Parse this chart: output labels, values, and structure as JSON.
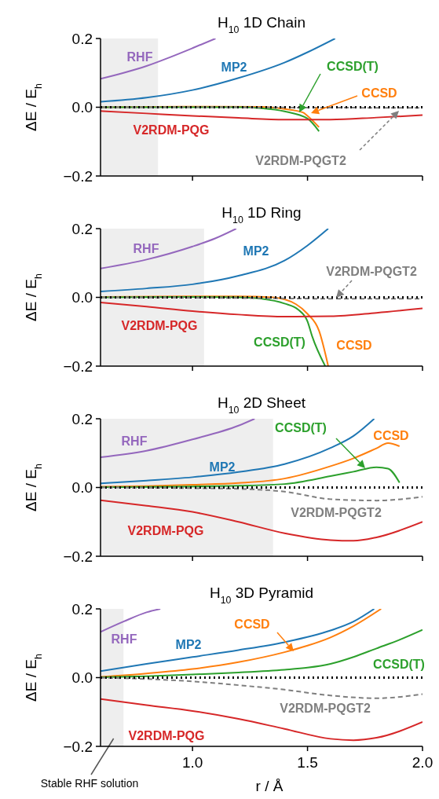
{
  "chart_data": [
    {
      "type": "line",
      "title": "H$_{10}$ 1D Chain",
      "ylabel": "ΔE / E$_{h}$",
      "xlim": [
        0.6,
        2.0
      ],
      "ylim": [
        -0.2,
        0.2
      ],
      "xticks": [
        {
          "value": 1,
          "label": null
        },
        {
          "value": 1.5,
          "label": null
        },
        {
          "value": 2,
          "label": null
        }
      ],
      "yticks": [
        {
          "value": -0.2,
          "label": "−0.2"
        },
        {
          "value": 0,
          "label": "0.0"
        },
        {
          "value": 0.2,
          "label": "0.2"
        }
      ],
      "tick_labels": "y",
      "grid": false,
      "legend": false,
      "marker": "none",
      "ref_lines": [
        {
          "axis": "y",
          "value": 0,
          "color": "#000000",
          "line_style": "dotted"
        }
      ],
      "bands": [
        {
          "axis": "x",
          "from": 0.6,
          "to": 0.85,
          "color": "#eeeeee"
        }
      ],
      "series": [
        {
          "name": "RHF",
          "color": "#9467bd",
          "x": [
            0.6,
            0.7,
            0.8,
            0.9,
            1.0,
            1.1
          ],
          "values": [
            0.083,
            0.1,
            0.12,
            0.145,
            0.172,
            0.2
          ]
        },
        {
          "name": "MP2",
          "color": "#1f77b4",
          "x": [
            0.6,
            0.8,
            1.0,
            1.2,
            1.4,
            1.5,
            1.62
          ],
          "values": [
            0.016,
            0.028,
            0.05,
            0.085,
            0.13,
            0.16,
            0.2
          ]
        },
        {
          "name": "CCSD",
          "color": "#ff7f0e",
          "x": [
            0.6,
            1.0,
            1.3,
            1.4,
            1.48,
            1.5,
            1.55
          ],
          "values": [
            0,
            0.002,
            0.001,
            -0.005,
            -0.015,
            -0.025,
            -0.058
          ]
        },
        {
          "name": "CCSD(T)",
          "color": "#2ca02c",
          "x": [
            0.6,
            1.2,
            1.3,
            1.4,
            1.5,
            1.55
          ],
          "values": [
            0,
            0,
            -0.003,
            -0.012,
            -0.033,
            -0.07
          ]
        },
        {
          "name": "V2RDM-PQG",
          "color": "#d62728",
          "x": [
            0.6,
            0.8,
            1.0,
            1.2,
            1.4,
            1.6,
            1.8,
            2.0
          ],
          "values": [
            -0.011,
            -0.018,
            -0.025,
            -0.031,
            -0.036,
            -0.036,
            -0.03,
            -0.023
          ]
        },
        {
          "name": "V2RDM-PQGT2",
          "color": "#7f7f7f",
          "line_style": "dashed",
          "x": [
            0.6,
            1.0,
            1.5,
            2.0
          ],
          "values": [
            0,
            0,
            -0.001,
            -0.002
          ]
        }
      ]
    },
    {
      "type": "line",
      "title": "H$_{10}$ 1D Ring",
      "ylabel": "ΔE / E$_{h}$",
      "xlim": [
        0.6,
        2.0
      ],
      "ylim": [
        -0.2,
        0.2
      ],
      "xticks": [
        {
          "value": 1,
          "label": null
        },
        {
          "value": 1.5,
          "label": null
        },
        {
          "value": 2,
          "label": null
        }
      ],
      "yticks": [
        {
          "value": -0.2,
          "label": "−0.2"
        },
        {
          "value": 0,
          "label": "0.0"
        },
        {
          "value": 0.2,
          "label": "0.2"
        }
      ],
      "tick_labels": "y",
      "grid": false,
      "legend": false,
      "marker": "none",
      "ref_lines": [
        {
          "axis": "y",
          "value": 0,
          "color": "#000000",
          "line_style": "dotted"
        }
      ],
      "bands": [
        {
          "axis": "x",
          "from": 0.6,
          "to": 1.05,
          "color": "#eeeeee"
        }
      ],
      "series": [
        {
          "name": "RHF",
          "color": "#9467bd",
          "x": [
            0.6,
            0.8,
            1.0,
            1.1,
            1.19
          ],
          "values": [
            0.084,
            0.11,
            0.148,
            0.172,
            0.2
          ]
        },
        {
          "name": "MP2",
          "color": "#1f77b4",
          "x": [
            0.6,
            0.8,
            1.0,
            1.2,
            1.4,
            1.5,
            1.59
          ],
          "values": [
            0.017,
            0.026,
            0.038,
            0.063,
            0.107,
            0.151,
            0.2
          ]
        },
        {
          "name": "CCSD",
          "color": "#ff7f0e",
          "x": [
            0.6,
            1.0,
            1.2,
            1.35,
            1.45,
            1.5,
            1.55,
            1.59
          ],
          "values": [
            0.001,
            0.003,
            0.003,
            0,
            -0.02,
            -0.048,
            -0.097,
            -0.2
          ]
        },
        {
          "name": "CCSD(T)",
          "color": "#2ca02c",
          "x": [
            0.6,
            1.0,
            1.2,
            1.3,
            1.4,
            1.46,
            1.5,
            1.52,
            1.577
          ],
          "values": [
            0,
            0.001,
            0,
            -0.004,
            -0.018,
            -0.036,
            -0.07,
            -0.113,
            -0.2
          ]
        },
        {
          "name": "V2RDM-PQG",
          "color": "#d62728",
          "x": [
            0.6,
            0.8,
            1.0,
            1.2,
            1.4,
            1.6,
            1.8,
            2.0
          ],
          "values": [
            -0.015,
            -0.027,
            -0.04,
            -0.05,
            -0.056,
            -0.055,
            -0.045,
            -0.032
          ]
        },
        {
          "name": "V2RDM-PQGT2",
          "color": "#7f7f7f",
          "line_style": "dashed",
          "x": [
            0.6,
            1.0,
            1.4,
            1.6,
            2.0
          ],
          "values": [
            0,
            -0.001,
            -0.003,
            -0.004,
            -0.004
          ]
        }
      ]
    },
    {
      "type": "line",
      "title": "H$_{10}$ 2D Sheet",
      "ylabel": "ΔE / E$_{h}$",
      "xlim": [
        0.6,
        2.0
      ],
      "ylim": [
        -0.2,
        0.2
      ],
      "xticks": [
        {
          "value": 1,
          "label": null
        },
        {
          "value": 1.5,
          "label": null
        },
        {
          "value": 2,
          "label": null
        }
      ],
      "yticks": [
        {
          "value": -0.2,
          "label": "−0.2"
        },
        {
          "value": 0,
          "label": "0.0"
        },
        {
          "value": 0.2,
          "label": "0.2"
        }
      ],
      "tick_labels": "y",
      "grid": false,
      "legend": false,
      "marker": "none",
      "ref_lines": [
        {
          "axis": "y",
          "value": 0,
          "color": "#000000",
          "line_style": "dotted"
        }
      ],
      "bands": [
        {
          "axis": "x",
          "from": 0.6,
          "to": 1.35,
          "color": "#eeeeee"
        }
      ],
      "series": [
        {
          "name": "RHF",
          "color": "#9467bd",
          "x": [
            0.6,
            0.8,
            1.0,
            1.2,
            1.27
          ],
          "values": [
            0.088,
            0.107,
            0.14,
            0.18,
            0.2
          ]
        },
        {
          "name": "MP2",
          "color": "#1f77b4",
          "x": [
            0.6,
            0.8,
            1.0,
            1.2,
            1.4,
            1.6,
            1.7,
            1.79
          ],
          "values": [
            0.012,
            0.02,
            0.03,
            0.045,
            0.068,
            0.115,
            0.15,
            0.2
          ]
        },
        {
          "name": "CCSD",
          "color": "#ff7f0e",
          "x": [
            0.6,
            0.8,
            1.0,
            1.2,
            1.4,
            1.6,
            1.7,
            1.8,
            1.85,
            1.9
          ],
          "values": [
            0.002,
            0.004,
            0.008,
            0.013,
            0.026,
            0.062,
            0.085,
            0.114,
            0.129,
            0.12
          ]
        },
        {
          "name": "CCSD(T)",
          "color": "#2ca02c",
          "x": [
            0.6,
            1.0,
            1.2,
            1.4,
            1.6,
            1.7,
            1.8,
            1.85,
            1.9
          ],
          "values": [
            0.001,
            0.003,
            0.005,
            0.01,
            0.033,
            0.046,
            0.059,
            0.055,
            0.014
          ]
        },
        {
          "name": "V2RDM-PQG",
          "color": "#d62728",
          "x": [
            0.6,
            0.8,
            1.0,
            1.2,
            1.4,
            1.6,
            1.7,
            1.8,
            2.0
          ],
          "values": [
            -0.037,
            -0.053,
            -0.071,
            -0.1,
            -0.133,
            -0.153,
            -0.155,
            -0.145,
            -0.1
          ]
        },
        {
          "name": "V2RDM-PQGT2",
          "color": "#7f7f7f",
          "line_style": "dashed",
          "x": [
            0.6,
            1.0,
            1.2,
            1.4,
            1.6,
            1.8,
            2.0
          ],
          "values": [
            0,
            -0.002,
            -0.004,
            -0.012,
            -0.034,
            -0.038,
            -0.027
          ]
        }
      ]
    },
    {
      "type": "line",
      "title": "H$_{10}$ 3D Pyramid",
      "xlabel": "r / Å",
      "ylabel": "ΔE / E$_{h}$",
      "xlim": [
        0.6,
        2.0
      ],
      "ylim": [
        -0.2,
        0.2
      ],
      "xticks": [
        {
          "value": 1,
          "label": "1.0"
        },
        {
          "value": 1.5,
          "label": "1.5"
        },
        {
          "value": 2,
          "label": "2.0"
        }
      ],
      "yticks": [
        {
          "value": -0.2,
          "label": "−0.2"
        },
        {
          "value": 0,
          "label": "0.0"
        },
        {
          "value": 0.2,
          "label": "0.2"
        }
      ],
      "grid": false,
      "legend": false,
      "marker": "none",
      "ref_lines": [
        {
          "axis": "y",
          "value": 0,
          "color": "#000000",
          "line_style": "dotted"
        }
      ],
      "bands": [
        {
          "axis": "x",
          "from": 0.6,
          "to": 0.7,
          "color": "#eeeeee",
          "label": "Stable RHF solution"
        }
      ],
      "series": [
        {
          "name": "RHF",
          "color": "#9467bd",
          "x": [
            0.6,
            0.7,
            0.8,
            0.86
          ],
          "values": [
            0.133,
            0.163,
            0.19,
            0.2
          ]
        },
        {
          "name": "MP2",
          "color": "#1f77b4",
          "x": [
            0.6,
            0.8,
            1.0,
            1.2,
            1.4,
            1.6,
            1.7,
            1.79
          ],
          "values": [
            0.019,
            0.04,
            0.06,
            0.08,
            0.103,
            0.137,
            0.163,
            0.2
          ]
        },
        {
          "name": "CCSD",
          "color": "#ff7f0e",
          "x": [
            0.6,
            0.8,
            1.0,
            1.2,
            1.4,
            1.5,
            1.6,
            1.7,
            1.82
          ],
          "values": [
            0.002,
            0.012,
            0.025,
            0.045,
            0.074,
            0.093,
            0.117,
            0.15,
            0.2
          ]
        },
        {
          "name": "CCSD(T)",
          "color": "#2ca02c",
          "x": [
            0.6,
            0.8,
            1.0,
            1.2,
            1.4,
            1.5,
            1.6,
            1.7,
            1.8,
            1.9,
            2.0
          ],
          "values": [
            0.001,
            0.004,
            0.009,
            0.015,
            0.023,
            0.029,
            0.04,
            0.06,
            0.085,
            0.11,
            0.139
          ]
        },
        {
          "name": "V2RDM-PQG",
          "color": "#d62728",
          "x": [
            0.6,
            0.8,
            1.0,
            1.2,
            1.4,
            1.6,
            1.7,
            1.8,
            2.0
          ],
          "values": [
            -0.062,
            -0.08,
            -0.097,
            -0.12,
            -0.149,
            -0.178,
            -0.182,
            -0.175,
            -0.129
          ]
        },
        {
          "name": "V2RDM-PQGT2",
          "color": "#7f7f7f",
          "line_style": "dashed",
          "x": [
            0.6,
            0.8,
            1.0,
            1.2,
            1.4,
            1.6,
            1.8,
            2.0
          ],
          "values": [
            0,
            -0.004,
            -0.011,
            -0.022,
            -0.035,
            -0.052,
            -0.06,
            -0.048
          ]
        }
      ]
    }
  ]
}
